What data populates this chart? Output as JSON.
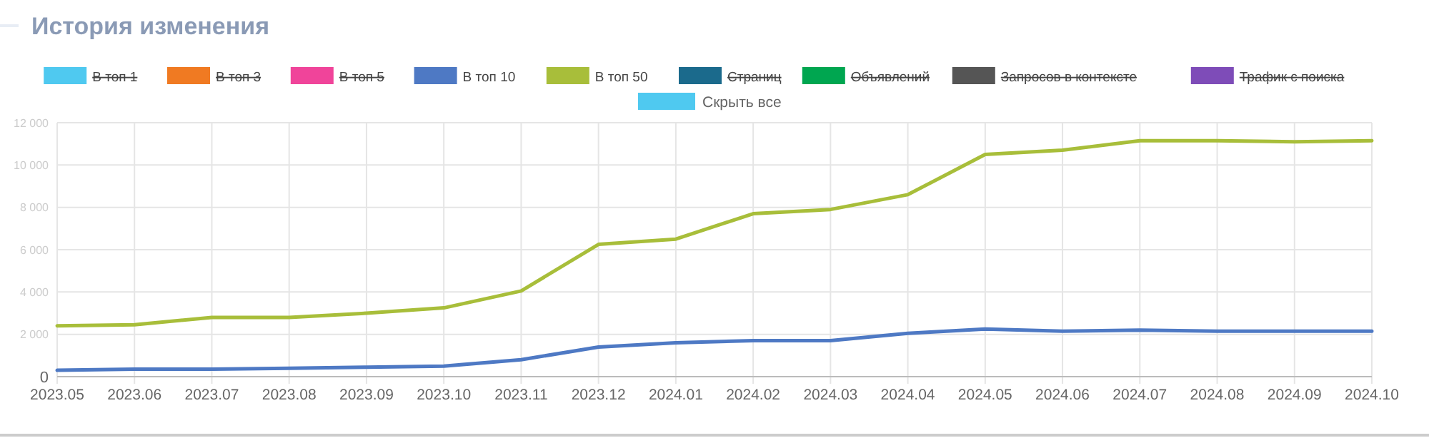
{
  "chart_data": {
    "type": "line",
    "title": "История изменения",
    "categories": [
      "2023.05",
      "2023.06",
      "2023.07",
      "2023.08",
      "2023.09",
      "2023.10",
      "2023.11",
      "2023.12",
      "2024.01",
      "2024.02",
      "2024.03",
      "2024.04",
      "2024.05",
      "2024.06",
      "2024.07",
      "2024.08",
      "2024.09",
      "2024.10"
    ],
    "series": [
      {
        "name": "В топ 1",
        "color": "#4fc9f0",
        "values": [
          null,
          null,
          null,
          null,
          null,
          null,
          null,
          null,
          null,
          null,
          null,
          null,
          null,
          null,
          null,
          null,
          null,
          null
        ]
      },
      {
        "name": "В топ 3",
        "color": "#f07a22",
        "values": [
          null,
          null,
          null,
          null,
          null,
          null,
          null,
          null,
          null,
          null,
          null,
          null,
          null,
          null,
          null,
          null,
          null,
          null
        ]
      },
      {
        "name": "В топ 5",
        "color": "#f0449a",
        "values": [
          null,
          null,
          null,
          null,
          null,
          null,
          null,
          null,
          null,
          null,
          null,
          null,
          null,
          null,
          null,
          null,
          null,
          null
        ]
      },
      {
        "name": "В топ 10",
        "color": "#4e79c4",
        "values": [
          300,
          350,
          350,
          400,
          450,
          500,
          800,
          1400,
          1600,
          1700,
          1700,
          2050,
          2250,
          2150,
          2200,
          2150,
          2150,
          2150
        ]
      },
      {
        "name": "В топ 50",
        "color": "#a8be3a",
        "values": [
          2400,
          2450,
          2800,
          2800,
          3000,
          3250,
          4050,
          6250,
          6500,
          7700,
          7900,
          8600,
          10500,
          10700,
          11150,
          11150,
          11100,
          11150
        ]
      },
      {
        "name": "Страниц",
        "color": "#1b6a8c",
        "values": [
          null,
          null,
          null,
          null,
          null,
          null,
          null,
          null,
          null,
          null,
          null,
          null,
          null,
          null,
          null,
          null,
          null,
          null
        ]
      },
      {
        "name": "Объявлений",
        "color": "#00a650",
        "values": [
          null,
          null,
          null,
          null,
          null,
          null,
          null,
          null,
          null,
          null,
          null,
          null,
          null,
          null,
          null,
          null,
          null,
          null
        ]
      },
      {
        "name": "Запросов в контексте",
        "color": "#555555",
        "values": [
          null,
          null,
          null,
          null,
          null,
          null,
          null,
          null,
          null,
          null,
          null,
          null,
          null,
          null,
          null,
          null,
          null,
          null
        ]
      },
      {
        "name": "Трафик с поиска",
        "color": "#7e4cb8",
        "values": [
          null,
          null,
          null,
          null,
          null,
          null,
          null,
          null,
          null,
          null,
          null,
          null,
          null,
          null,
          null,
          null,
          null,
          null
        ]
      }
    ],
    "ylim": [
      0,
      12000
    ],
    "yticks": [
      0,
      {
        "value": 2000,
        "label": "2 000"
      },
      {
        "value": 4000,
        "label": "4 000"
      },
      {
        "value": 6000,
        "label": "6 000"
      },
      {
        "value": 8000,
        "label": "8 000"
      },
      {
        "value": 10000,
        "label": "10 000"
      },
      {
        "value": 12000,
        "label": "12 000"
      }
    ],
    "grid": true,
    "legend": "top",
    "marker": "none",
    "line_style": "solid",
    "annotations": [
      "Скрыть все"
    ]
  }
}
